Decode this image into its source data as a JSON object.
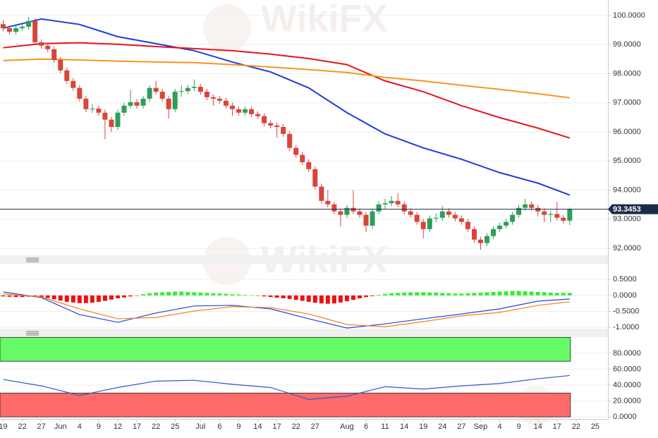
{
  "watermark": "WikiFX",
  "chart_data": [
    {
      "type": "candlestick",
      "xlim": [
        -0.5,
        95
      ],
      "ylim": [
        91.76,
        100.53
      ],
      "up_color": "#2e9e5b",
      "down_color": "#d9453b",
      "yticks": [
        {
          "value": 100,
          "label": "100.0000"
        },
        {
          "value": 99,
          "label": "99.0000"
        },
        {
          "value": 98,
          "label": "98.0000"
        },
        {
          "value": 97,
          "label": "97.0000"
        },
        {
          "value": 96,
          "label": "96.0000"
        },
        {
          "value": 95,
          "label": "95.0000"
        },
        {
          "value": 94,
          "label": "94.0000"
        },
        {
          "value": 93,
          "label": "93.0000"
        },
        {
          "value": 92,
          "label": "92.0000"
        }
      ],
      "grid": true,
      "last_price": 93.3453,
      "last_price_color": "#1c2b4a",
      "ohlc": [
        [
          99.7,
          99.85,
          99.45,
          99.56
        ],
        [
          99.56,
          99.66,
          99.34,
          99.44
        ],
        [
          99.44,
          99.66,
          99.34,
          99.56
        ],
        [
          99.56,
          99.71,
          99.46,
          99.61
        ],
        [
          99.61,
          99.95,
          99.51,
          99.81
        ],
        [
          99.81,
          99.91,
          98.98,
          99.08
        ],
        [
          99.08,
          99.18,
          98.86,
          98.96
        ],
        [
          98.96,
          99.06,
          98.74,
          98.84
        ],
        [
          98.84,
          98.94,
          98.37,
          98.47
        ],
        [
          98.47,
          98.57,
          98.01,
          98.11
        ],
        [
          98.11,
          98.21,
          97.65,
          97.75
        ],
        [
          97.75,
          97.85,
          97.41,
          97.51
        ],
        [
          97.51,
          97.61,
          97.04,
          97.14
        ],
        [
          97.14,
          97.24,
          96.68,
          96.78
        ],
        [
          96.78,
          96.95,
          96.65,
          96.8
        ],
        [
          96.8,
          96.9,
          96.56,
          96.66
        ],
        [
          96.66,
          96.76,
          95.75,
          96.42
        ],
        [
          96.42,
          96.52,
          96.0,
          96.17
        ],
        [
          96.17,
          96.76,
          96.07,
          96.66
        ],
        [
          96.66,
          97.0,
          96.56,
          96.9
        ],
        [
          96.9,
          97.45,
          96.8,
          97.02
        ],
        [
          97.02,
          97.12,
          96.8,
          96.9
        ],
        [
          96.9,
          97.24,
          96.8,
          97.14
        ],
        [
          97.14,
          97.61,
          97.04,
          97.51
        ],
        [
          97.51,
          97.75,
          97.28,
          97.38
        ],
        [
          97.38,
          97.48,
          97.04,
          97.14
        ],
        [
          97.14,
          97.24,
          96.45,
          96.78
        ],
        [
          96.78,
          97.48,
          96.68,
          97.38
        ],
        [
          97.38,
          97.6,
          97.2,
          97.4
        ],
        [
          97.4,
          97.61,
          97.3,
          97.51
        ],
        [
          97.51,
          97.8,
          97.4,
          97.55
        ],
        [
          97.55,
          97.65,
          97.28,
          97.38
        ],
        [
          97.38,
          97.48,
          97.09,
          97.19
        ],
        [
          97.19,
          97.29,
          96.9,
          97.14
        ],
        [
          97.14,
          97.24,
          96.97,
          97.07
        ],
        [
          97.07,
          97.17,
          96.8,
          96.9
        ],
        [
          96.9,
          97.0,
          96.55,
          96.78
        ],
        [
          96.78,
          96.88,
          96.56,
          96.66
        ],
        [
          96.66,
          96.88,
          96.56,
          96.78
        ],
        [
          96.78,
          96.88,
          96.51,
          96.61
        ],
        [
          96.61,
          96.71,
          96.44,
          96.54
        ],
        [
          96.54,
          96.64,
          96.2,
          96.3
        ],
        [
          96.3,
          96.4,
          96.12,
          96.22
        ],
        [
          96.22,
          96.32,
          95.8,
          96.17
        ],
        [
          96.17,
          96.27,
          95.83,
          95.93
        ],
        [
          95.93,
          96.03,
          95.35,
          95.45
        ],
        [
          95.45,
          95.55,
          95.11,
          95.21
        ],
        [
          95.21,
          95.31,
          94.86,
          94.96
        ],
        [
          94.96,
          95.06,
          94.62,
          94.72
        ],
        [
          94.72,
          94.82,
          94.02,
          94.12
        ],
        [
          94.12,
          94.22,
          93.53,
          93.63
        ],
        [
          93.63,
          94.0,
          93.41,
          93.51
        ],
        [
          93.51,
          93.61,
          93.17,
          93.27
        ],
        [
          93.27,
          93.37,
          92.75,
          93.15
        ],
        [
          93.15,
          93.49,
          93.05,
          93.39
        ],
        [
          93.39,
          94.0,
          93.17,
          93.27
        ],
        [
          93.27,
          93.37,
          93.05,
          93.15
        ],
        [
          93.15,
          93.25,
          92.55,
          92.78
        ],
        [
          92.78,
          93.37,
          92.68,
          93.27
        ],
        [
          93.27,
          93.61,
          93.17,
          93.51
        ],
        [
          93.51,
          93.7,
          93.35,
          93.55
        ],
        [
          93.55,
          93.8,
          93.45,
          93.63
        ],
        [
          93.63,
          93.9,
          93.41,
          93.51
        ],
        [
          93.51,
          93.61,
          93.17,
          93.27
        ],
        [
          93.27,
          93.37,
          93.05,
          93.15
        ],
        [
          93.15,
          93.25,
          92.81,
          92.91
        ],
        [
          92.91,
          93.01,
          92.35,
          92.66
        ],
        [
          92.66,
          93.13,
          92.56,
          93.03
        ],
        [
          93.03,
          93.2,
          92.9,
          93.05
        ],
        [
          93.05,
          93.45,
          92.95,
          93.27
        ],
        [
          93.27,
          93.37,
          93.05,
          93.15
        ],
        [
          93.15,
          93.25,
          92.93,
          93.03
        ],
        [
          93.03,
          93.13,
          92.81,
          92.91
        ],
        [
          92.91,
          93.01,
          92.56,
          92.66
        ],
        [
          92.66,
          92.76,
          92.2,
          92.3
        ],
        [
          92.3,
          92.4,
          91.95,
          92.18
        ],
        [
          92.18,
          92.52,
          92.08,
          92.42
        ],
        [
          92.42,
          92.76,
          92.32,
          92.66
        ],
        [
          92.66,
          92.88,
          92.56,
          92.78
        ],
        [
          92.78,
          93.01,
          92.68,
          92.91
        ],
        [
          92.91,
          93.25,
          92.81,
          93.15
        ],
        [
          93.15,
          93.49,
          93.05,
          93.39
        ],
        [
          93.39,
          93.7,
          93.29,
          93.51
        ],
        [
          93.51,
          93.61,
          93.29,
          93.39
        ],
        [
          93.39,
          93.49,
          93.1,
          93.27
        ],
        [
          93.27,
          93.37,
          92.9,
          93.15
        ],
        [
          93.15,
          93.3,
          92.9,
          93.18
        ],
        [
          93.18,
          93.6,
          92.95,
          93.05
        ],
        [
          93.05,
          93.15,
          92.85,
          92.95
        ],
        [
          92.95,
          93.4,
          92.8,
          93.3453
        ]
      ],
      "series": [
        {
          "color": "#1f3ddb",
          "x": [
            0,
            6,
            12,
            18,
            24,
            30,
            36,
            42,
            48,
            54,
            60,
            66,
            72,
            78,
            84,
            89
          ],
          "values": [
            99.56,
            99.88,
            99.69,
            99.27,
            99.03,
            98.79,
            98.4,
            98.06,
            97.51,
            96.66,
            95.93,
            95.45,
            95.06,
            94.6,
            94.24,
            93.83
          ]
        },
        {
          "color": "#e8141c",
          "x": [
            0,
            6,
            12,
            18,
            24,
            30,
            36,
            42,
            48,
            54,
            60,
            66,
            72,
            78,
            84,
            89
          ],
          "values": [
            98.89,
            99.03,
            99.06,
            99.01,
            98.93,
            98.86,
            98.79,
            98.67,
            98.52,
            98.31,
            97.75,
            97.38,
            96.9,
            96.49,
            96.13,
            95.79
          ]
        },
        {
          "color": "#f7941d",
          "x": [
            0,
            6,
            12,
            18,
            24,
            30,
            36,
            42,
            48,
            54,
            60,
            66,
            72,
            78,
            84,
            89
          ],
          "values": [
            98.45,
            98.5,
            98.47,
            98.43,
            98.4,
            98.38,
            98.31,
            98.23,
            98.14,
            98.04,
            97.87,
            97.75,
            97.6,
            97.46,
            97.31,
            97.17
          ]
        }
      ]
    },
    {
      "type": "macd",
      "xlim": [
        -0.5,
        95
      ],
      "ylim": [
        -1.04,
        0.99
      ],
      "yticks": [
        {
          "value": 0.5,
          "label": "0.5000"
        },
        {
          "value": 0,
          "label": "0.0000"
        },
        {
          "value": -0.5,
          "label": "-0.5000"
        },
        {
          "value": -1,
          "label": "-1.0000"
        }
      ],
      "grid": true,
      "positive_color": "#33ee33",
      "negative_color": "#ee1111",
      "histogram": [
        -0.03,
        -0.04,
        -0.05,
        -0.05,
        -0.04,
        -0.04,
        -0.05,
        -0.08,
        -0.12,
        -0.16,
        -0.2,
        -0.22,
        -0.24,
        -0.24,
        -0.23,
        -0.2,
        -0.17,
        -0.13,
        -0.09,
        -0.06,
        -0.03,
        -0.01,
        0.04,
        0.07,
        0.09,
        0.1,
        0.11,
        0.12,
        0.12,
        0.11,
        0.1,
        0.09,
        0.08,
        0.07,
        0.06,
        0.05,
        0.04,
        0.03,
        0.02,
        0.01,
        -0.01,
        -0.03,
        -0.05,
        -0.07,
        -0.09,
        -0.11,
        -0.14,
        -0.17,
        -0.2,
        -0.23,
        -0.25,
        -0.26,
        -0.25,
        -0.22,
        -0.18,
        -0.14,
        -0.09,
        -0.05,
        -0.02,
        0.02,
        0.05,
        0.07,
        0.08,
        0.09,
        0.1,
        0.1,
        0.1,
        0.09,
        0.09,
        0.08,
        0.07,
        0.06,
        0.06,
        0.07,
        0.08,
        0.09,
        0.1,
        0.11,
        0.12,
        0.13,
        0.14,
        0.14,
        0.13,
        0.12,
        0.11,
        0.1,
        0.09,
        0.08,
        0.08,
        0.08
      ],
      "series": [
        {
          "color": "#2048d8",
          "x": [
            0,
            6,
            12,
            18,
            24,
            30,
            36,
            42,
            48,
            54,
            60,
            66,
            72,
            78,
            84,
            89
          ],
          "values": [
            0.11,
            -0.07,
            -0.6,
            -0.84,
            -0.55,
            -0.33,
            -0.31,
            -0.42,
            -0.73,
            -1.02,
            -0.89,
            -0.73,
            -0.58,
            -0.42,
            -0.18,
            -0.11
          ]
        },
        {
          "color": "#f07f22",
          "x": [
            0,
            6,
            12,
            18,
            24,
            30,
            36,
            42,
            48,
            54,
            60,
            66,
            72,
            78,
            84,
            89
          ],
          "values": [
            0.05,
            -0.05,
            -0.42,
            -0.73,
            -0.69,
            -0.49,
            -0.35,
            -0.38,
            -0.58,
            -0.91,
            -0.98,
            -0.82,
            -0.64,
            -0.53,
            -0.31,
            -0.2
          ]
        }
      ]
    },
    {
      "type": "rsi",
      "xlim": [
        -0.5,
        95
      ],
      "ylim": [
        -2.6,
        100.3
      ],
      "yticks": [
        {
          "value": 80,
          "label": "80.0000"
        },
        {
          "value": 60,
          "label": "60.0000"
        },
        {
          "value": 40,
          "label": "40.0000"
        },
        {
          "value": 20,
          "label": "20.0000"
        },
        {
          "value": 0,
          "label": "0.0000"
        }
      ],
      "grid": true,
      "bands": [
        {
          "from": 70,
          "to": 100,
          "color": "#66fa66"
        },
        {
          "from": 0,
          "to": 30,
          "color": "#ff6b6b"
        }
      ],
      "series": [
        {
          "color": "#3355cc",
          "x": [
            0,
            6,
            12,
            18,
            24,
            30,
            36,
            42,
            48,
            54,
            60,
            66,
            72,
            78,
            84,
            89
          ],
          "values": [
            47,
            39,
            27,
            37,
            45,
            46,
            41,
            37,
            22,
            26,
            38,
            35,
            39,
            42,
            48,
            52
          ]
        }
      ],
      "xticks": [
        {
          "value": 0,
          "label": "19"
        },
        {
          "value": 3,
          "label": "22"
        },
        {
          "value": 6,
          "label": "27"
        },
        {
          "value": 9,
          "label": "Jun"
        },
        {
          "value": 12,
          "label": "4"
        },
        {
          "value": 15,
          "label": "9"
        },
        {
          "value": 18,
          "label": "12"
        },
        {
          "value": 21,
          "label": "17"
        },
        {
          "value": 24,
          "label": "22"
        },
        {
          "value": 27,
          "label": "25"
        },
        {
          "value": 31,
          "label": "Jul"
        },
        {
          "value": 34,
          "label": "6"
        },
        {
          "value": 37,
          "label": "9"
        },
        {
          "value": 40,
          "label": "14"
        },
        {
          "value": 43,
          "label": "17"
        },
        {
          "value": 46,
          "label": "22"
        },
        {
          "value": 49,
          "label": "27"
        },
        {
          "value": 54,
          "label": "Aug"
        },
        {
          "value": 57,
          "label": "6"
        },
        {
          "value": 60,
          "label": "11"
        },
        {
          "value": 63,
          "label": "14"
        },
        {
          "value": 66,
          "label": "19"
        },
        {
          "value": 69,
          "label": "24"
        },
        {
          "value": 72,
          "label": "27"
        },
        {
          "value": 75,
          "label": "Sep"
        },
        {
          "value": 78,
          "label": "4"
        },
        {
          "value": 81,
          "label": "9"
        },
        {
          "value": 84,
          "label": "14"
        },
        {
          "value": 87,
          "label": "17"
        },
        {
          "value": 90,
          "label": "22"
        },
        {
          "value": 93,
          "label": "25"
        }
      ]
    }
  ]
}
